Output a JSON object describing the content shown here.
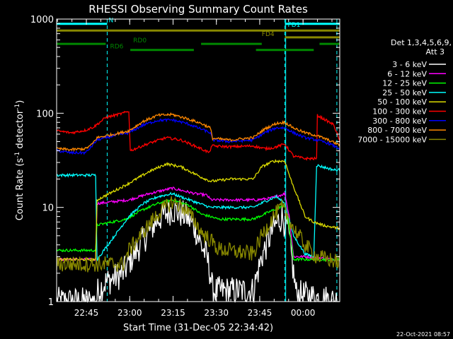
{
  "chart_data": {
    "type": "line",
    "title": "RHESSI Observing Summary Count Rates",
    "xlabel": "Start Time (31-Dec-05 22:34:42)",
    "ylabel_prefix": "Count Rate (s",
    "ylabel_sup1": "-1",
    "ylabel_mid": " detector",
    "ylabel_sup2": "-1",
    "ylabel_suffix": ")",
    "x_unit": "minutes after 22:34:42",
    "xlim": [
      0,
      98
    ],
    "ylim": [
      1,
      1000
    ],
    "yscale": "log",
    "x_ticks": [
      {
        "x": 10.3,
        "label": "22:45"
      },
      {
        "x": 25.3,
        "label": "23:00"
      },
      {
        "x": 40.3,
        "label": "23:15"
      },
      {
        "x": 55.3,
        "label": "23:30"
      },
      {
        "x": 70.3,
        "label": "23:45"
      },
      {
        "x": 85.3,
        "label": "00:00"
      }
    ],
    "y_ticks": [
      {
        "y": 1,
        "label": "1"
      },
      {
        "y": 10,
        "label": "10"
      },
      {
        "y": 100,
        "label": "100"
      },
      {
        "y": 1000,
        "label": "1000"
      }
    ],
    "legend": {
      "header1": "Det 1,3,4,5,6,9,",
      "header2": "Att 3",
      "placement": "right"
    },
    "series": [
      {
        "name": "3 - 6 keV",
        "color": "#ffffff",
        "noise": 0.45,
        "points": [
          [
            0,
            1
          ],
          [
            13.8,
            1
          ],
          [
            14.3,
            1.3
          ],
          [
            17,
            1.6
          ],
          [
            23,
            2.0
          ],
          [
            25,
            2.6
          ],
          [
            30,
            4.5
          ],
          [
            35,
            7.5
          ],
          [
            40,
            9.5
          ],
          [
            45,
            8
          ],
          [
            48,
            6
          ],
          [
            50,
            4
          ],
          [
            52,
            3
          ],
          [
            53.2,
            2
          ],
          [
            54,
            1.3
          ],
          [
            68,
            1.3
          ],
          [
            71,
            3
          ],
          [
            75,
            6
          ],
          [
            78,
            8
          ],
          [
            80,
            6
          ],
          [
            82,
            2
          ],
          [
            83,
            1.2
          ],
          [
            98,
            1
          ]
        ]
      },
      {
        "name": "6 - 12 keV",
        "color": "#ff00ff",
        "points": [
          [
            0,
            2.8
          ],
          [
            13.5,
            2.8
          ],
          [
            14,
            11
          ],
          [
            25,
            12
          ],
          [
            32,
            14
          ],
          [
            40,
            16
          ],
          [
            48,
            14
          ],
          [
            52,
            13.5
          ],
          [
            53.2,
            12.2
          ],
          [
            54,
            12
          ],
          [
            69,
            12
          ],
          [
            74,
            12.5
          ],
          [
            79,
            14
          ],
          [
            80.5,
            8
          ],
          [
            82,
            3
          ],
          [
            86,
            3
          ],
          [
            96.5,
            2.8
          ],
          [
            98,
            2.8
          ]
        ]
      },
      {
        "name": "12 - 25 keV",
        "color": "#00ff00",
        "points": [
          [
            0,
            3.5
          ],
          [
            13.5,
            3.5
          ],
          [
            14,
            6.5
          ],
          [
            24,
            7.5
          ],
          [
            30,
            9.5
          ],
          [
            35,
            11
          ],
          [
            40,
            12
          ],
          [
            46,
            10.5
          ],
          [
            50,
            8.5
          ],
          [
            53.2,
            8
          ],
          [
            56,
            7.5
          ],
          [
            68,
            7.5
          ],
          [
            72,
            8.5
          ],
          [
            77,
            10
          ],
          [
            79,
            10.5
          ],
          [
            80.5,
            6
          ],
          [
            82,
            2.8
          ],
          [
            86,
            2.8
          ],
          [
            98,
            2.8
          ]
        ]
      },
      {
        "name": "25 - 50 keV",
        "color": "#00ffff",
        "points": [
          [
            0,
            22
          ],
          [
            13.5,
            22
          ],
          [
            14,
            2.8
          ],
          [
            25,
            8
          ],
          [
            30,
            11
          ],
          [
            35,
            13
          ],
          [
            40,
            14
          ],
          [
            46,
            12
          ],
          [
            53.2,
            10
          ],
          [
            54,
            10
          ],
          [
            68,
            10
          ],
          [
            72,
            11.5
          ],
          [
            76,
            13
          ],
          [
            79,
            11
          ],
          [
            82,
            5
          ],
          [
            86,
            3.2
          ],
          [
            89,
            3
          ],
          [
            90,
            28
          ],
          [
            96,
            25
          ],
          [
            98,
            25
          ]
        ]
      },
      {
        "name": "50 - 100 keV",
        "color": "#dddd00",
        "points": [
          [
            0,
            2.8
          ],
          [
            13.5,
            2.8
          ],
          [
            14,
            12
          ],
          [
            25,
            18
          ],
          [
            32,
            24
          ],
          [
            38,
            29
          ],
          [
            43,
            27
          ],
          [
            50,
            21
          ],
          [
            53.2,
            19
          ],
          [
            54,
            19
          ],
          [
            60,
            20
          ],
          [
            68,
            20
          ],
          [
            71,
            27
          ],
          [
            75,
            31
          ],
          [
            79,
            31
          ],
          [
            81,
            20
          ],
          [
            86,
            8
          ],
          [
            89,
            7
          ],
          [
            92,
            6.5
          ],
          [
            95,
            6.2
          ],
          [
            98,
            6
          ]
        ]
      },
      {
        "name": "100 - 300 keV",
        "color": "#ff0000",
        "points": [
          [
            0,
            65
          ],
          [
            5,
            62
          ],
          [
            10,
            66
          ],
          [
            13,
            72
          ],
          [
            17,
            90
          ],
          [
            23,
            100
          ],
          [
            25,
            105
          ],
          [
            25.5,
            40
          ],
          [
            32,
            48
          ],
          [
            38,
            55
          ],
          [
            43,
            52
          ],
          [
            50,
            42
          ],
          [
            53,
            38
          ],
          [
            53.5,
            45
          ],
          [
            60,
            44
          ],
          [
            68,
            45
          ],
          [
            72,
            42
          ],
          [
            75,
            43
          ],
          [
            79,
            47
          ],
          [
            82,
            35
          ],
          [
            86,
            33
          ],
          [
            90,
            33
          ],
          [
            90.2,
            95
          ],
          [
            93,
            85
          ],
          [
            96,
            75
          ],
          [
            98,
            50
          ]
        ]
      },
      {
        "name": "300 - 800 keV",
        "color": "#0000ff",
        "points": [
          [
            0,
            40
          ],
          [
            5,
            38
          ],
          [
            10,
            38
          ],
          [
            12,
            44
          ],
          [
            14,
            52
          ],
          [
            20,
            58
          ],
          [
            25,
            62
          ],
          [
            30,
            75
          ],
          [
            35,
            84
          ],
          [
            40,
            85
          ],
          [
            45,
            78
          ],
          [
            50,
            68
          ],
          [
            53.2,
            62
          ],
          [
            54,
            52
          ],
          [
            60,
            50
          ],
          [
            68,
            52
          ],
          [
            72,
            62
          ],
          [
            76,
            70
          ],
          [
            79,
            70
          ],
          [
            82,
            62
          ],
          [
            86,
            55
          ],
          [
            90,
            52
          ],
          [
            94,
            48
          ],
          [
            98,
            42
          ]
        ]
      },
      {
        "name": "800 - 7000 keV",
        "color": "#ff8800",
        "points": [
          [
            0,
            42
          ],
          [
            5,
            41
          ],
          [
            10,
            42
          ],
          [
            12,
            46
          ],
          [
            14,
            55
          ],
          [
            20,
            60
          ],
          [
            25,
            65
          ],
          [
            30,
            82
          ],
          [
            35,
            95
          ],
          [
            40,
            97
          ],
          [
            45,
            88
          ],
          [
            50,
            78
          ],
          [
            53.2,
            70
          ],
          [
            54,
            54
          ],
          [
            60,
            52
          ],
          [
            68,
            55
          ],
          [
            72,
            68
          ],
          [
            76,
            78
          ],
          [
            79,
            80
          ],
          [
            82,
            70
          ],
          [
            86,
            62
          ],
          [
            90,
            58
          ],
          [
            94,
            52
          ],
          [
            98,
            46
          ]
        ]
      },
      {
        "name": "7000 - 15000 keV",
        "color": "#888800",
        "noise": 0.25,
        "points": [
          [
            0,
            2.5
          ],
          [
            13.5,
            2.5
          ],
          [
            23,
            2.5
          ],
          [
            25,
            3.5
          ],
          [
            30,
            5.5
          ],
          [
            35,
            8.5
          ],
          [
            40,
            11.5
          ],
          [
            44,
            10
          ],
          [
            48,
            7
          ],
          [
            50,
            5.5
          ],
          [
            53.2,
            4.5
          ],
          [
            56,
            3.6
          ],
          [
            68,
            3.2
          ],
          [
            71,
            5
          ],
          [
            75,
            8
          ],
          [
            78,
            10
          ],
          [
            80,
            8
          ],
          [
            82,
            6
          ],
          [
            86,
            4
          ],
          [
            90,
            3
          ],
          [
            98,
            2.6
          ]
        ]
      }
    ],
    "flags": [
      {
        "name": "N",
        "color": "#00ffff",
        "y": 890,
        "segments": [
          [
            0,
            17.5
          ]
        ],
        "label_x": 18,
        "label_y": 890
      },
      {
        "name": "FD1",
        "color": "#00ffff",
        "y": 890,
        "segments": [
          [
            79,
            98
          ]
        ],
        "label_x": 80,
        "label_y": 800
      },
      {
        "name": "",
        "color": "#888800",
        "y": 755,
        "segments": [
          [
            0,
            98
          ]
        ]
      },
      {
        "name": "FD4",
        "color": "#888800",
        "y": 640,
        "segments": [
          [
            79,
            98
          ]
        ],
        "label_x": 71,
        "label_y": 640
      },
      {
        "name": "RD0",
        "color": "#008800",
        "y": 545,
        "segments": [
          [
            0,
            17
          ],
          [
            50,
            71
          ],
          [
            91,
            98
          ]
        ],
        "label_x": 26.5,
        "label_y": 545
      },
      {
        "name": "RD6",
        "color": "#008800",
        "y": 470,
        "segments": [
          [
            25.5,
            47.5
          ],
          [
            69,
            89
          ]
        ],
        "label_x": 18.5,
        "label_y": 470
      }
    ],
    "dashed_markers": [
      17.5,
      79,
      97
    ],
    "solid_markers": [
      0,
      79.3
    ]
  },
  "timestamp": "22-Oct-2021 08:57"
}
